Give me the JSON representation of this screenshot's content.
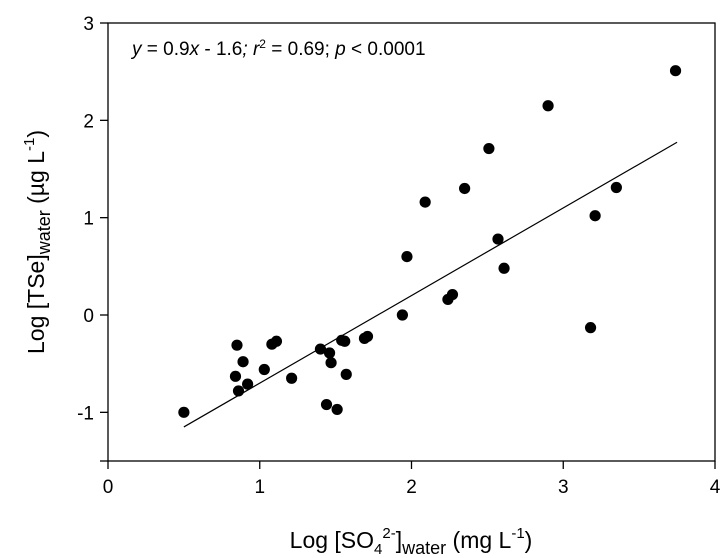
{
  "chart_data": {
    "type": "scatter",
    "xlim": [
      0,
      4
    ],
    "ylim": [
      -1.5,
      3
    ],
    "xticks": [
      "0",
      "1",
      "2",
      "3",
      "4"
    ],
    "yticks": [
      "-1",
      "0",
      "1",
      "2",
      "3"
    ],
    "xlabel": {
      "pre": "Log [SO",
      "sub1": "4",
      "sup1": "2-",
      "mid": "]",
      "sub2": "water",
      "post": " (mg L",
      "sup2": "-1",
      "end": ")"
    },
    "ylabel": {
      "pre": "Log [TSe]",
      "sub": "water",
      "post": " (µg L",
      "sup": "-1",
      "end": ")"
    },
    "annotation": {
      "y": "y",
      "eq": " = 0.9",
      "x": "x",
      "rest": " - 1.6",
      "sep1": "; ",
      "r": "r",
      "r_sup": "2",
      "r_val": " = 0.69; ",
      "p": "p",
      "p_val": " < 0.0001"
    },
    "regression": {
      "slope": 0.9,
      "intercept": -1.6,
      "x_range": [
        0.5,
        3.75
      ]
    },
    "points": [
      [
        0.5,
        -1.0
      ],
      [
        0.85,
        -0.31
      ],
      [
        0.84,
        -0.63
      ],
      [
        0.86,
        -0.78
      ],
      [
        0.89,
        -0.48
      ],
      [
        0.92,
        -0.71
      ],
      [
        1.03,
        -0.56
      ],
      [
        1.08,
        -0.3
      ],
      [
        1.11,
        -0.27
      ],
      [
        1.21,
        -0.65
      ],
      [
        1.4,
        -0.35
      ],
      [
        1.44,
        -0.92
      ],
      [
        1.46,
        -0.39
      ],
      [
        1.47,
        -0.49
      ],
      [
        1.51,
        -0.97
      ],
      [
        1.54,
        -0.26
      ],
      [
        1.56,
        -0.27
      ],
      [
        1.57,
        -0.61
      ],
      [
        1.69,
        -0.24
      ],
      [
        1.71,
        -0.22
      ],
      [
        1.94,
        0.0
      ],
      [
        1.97,
        0.6
      ],
      [
        2.09,
        1.16
      ],
      [
        2.24,
        0.16
      ],
      [
        2.27,
        0.21
      ],
      [
        2.35,
        1.3
      ],
      [
        2.51,
        1.71
      ],
      [
        2.57,
        0.78
      ],
      [
        2.61,
        0.48
      ],
      [
        2.9,
        2.15
      ],
      [
        3.18,
        -0.13
      ],
      [
        3.21,
        1.02
      ],
      [
        3.35,
        1.31
      ],
      [
        3.74,
        2.51
      ]
    ]
  }
}
